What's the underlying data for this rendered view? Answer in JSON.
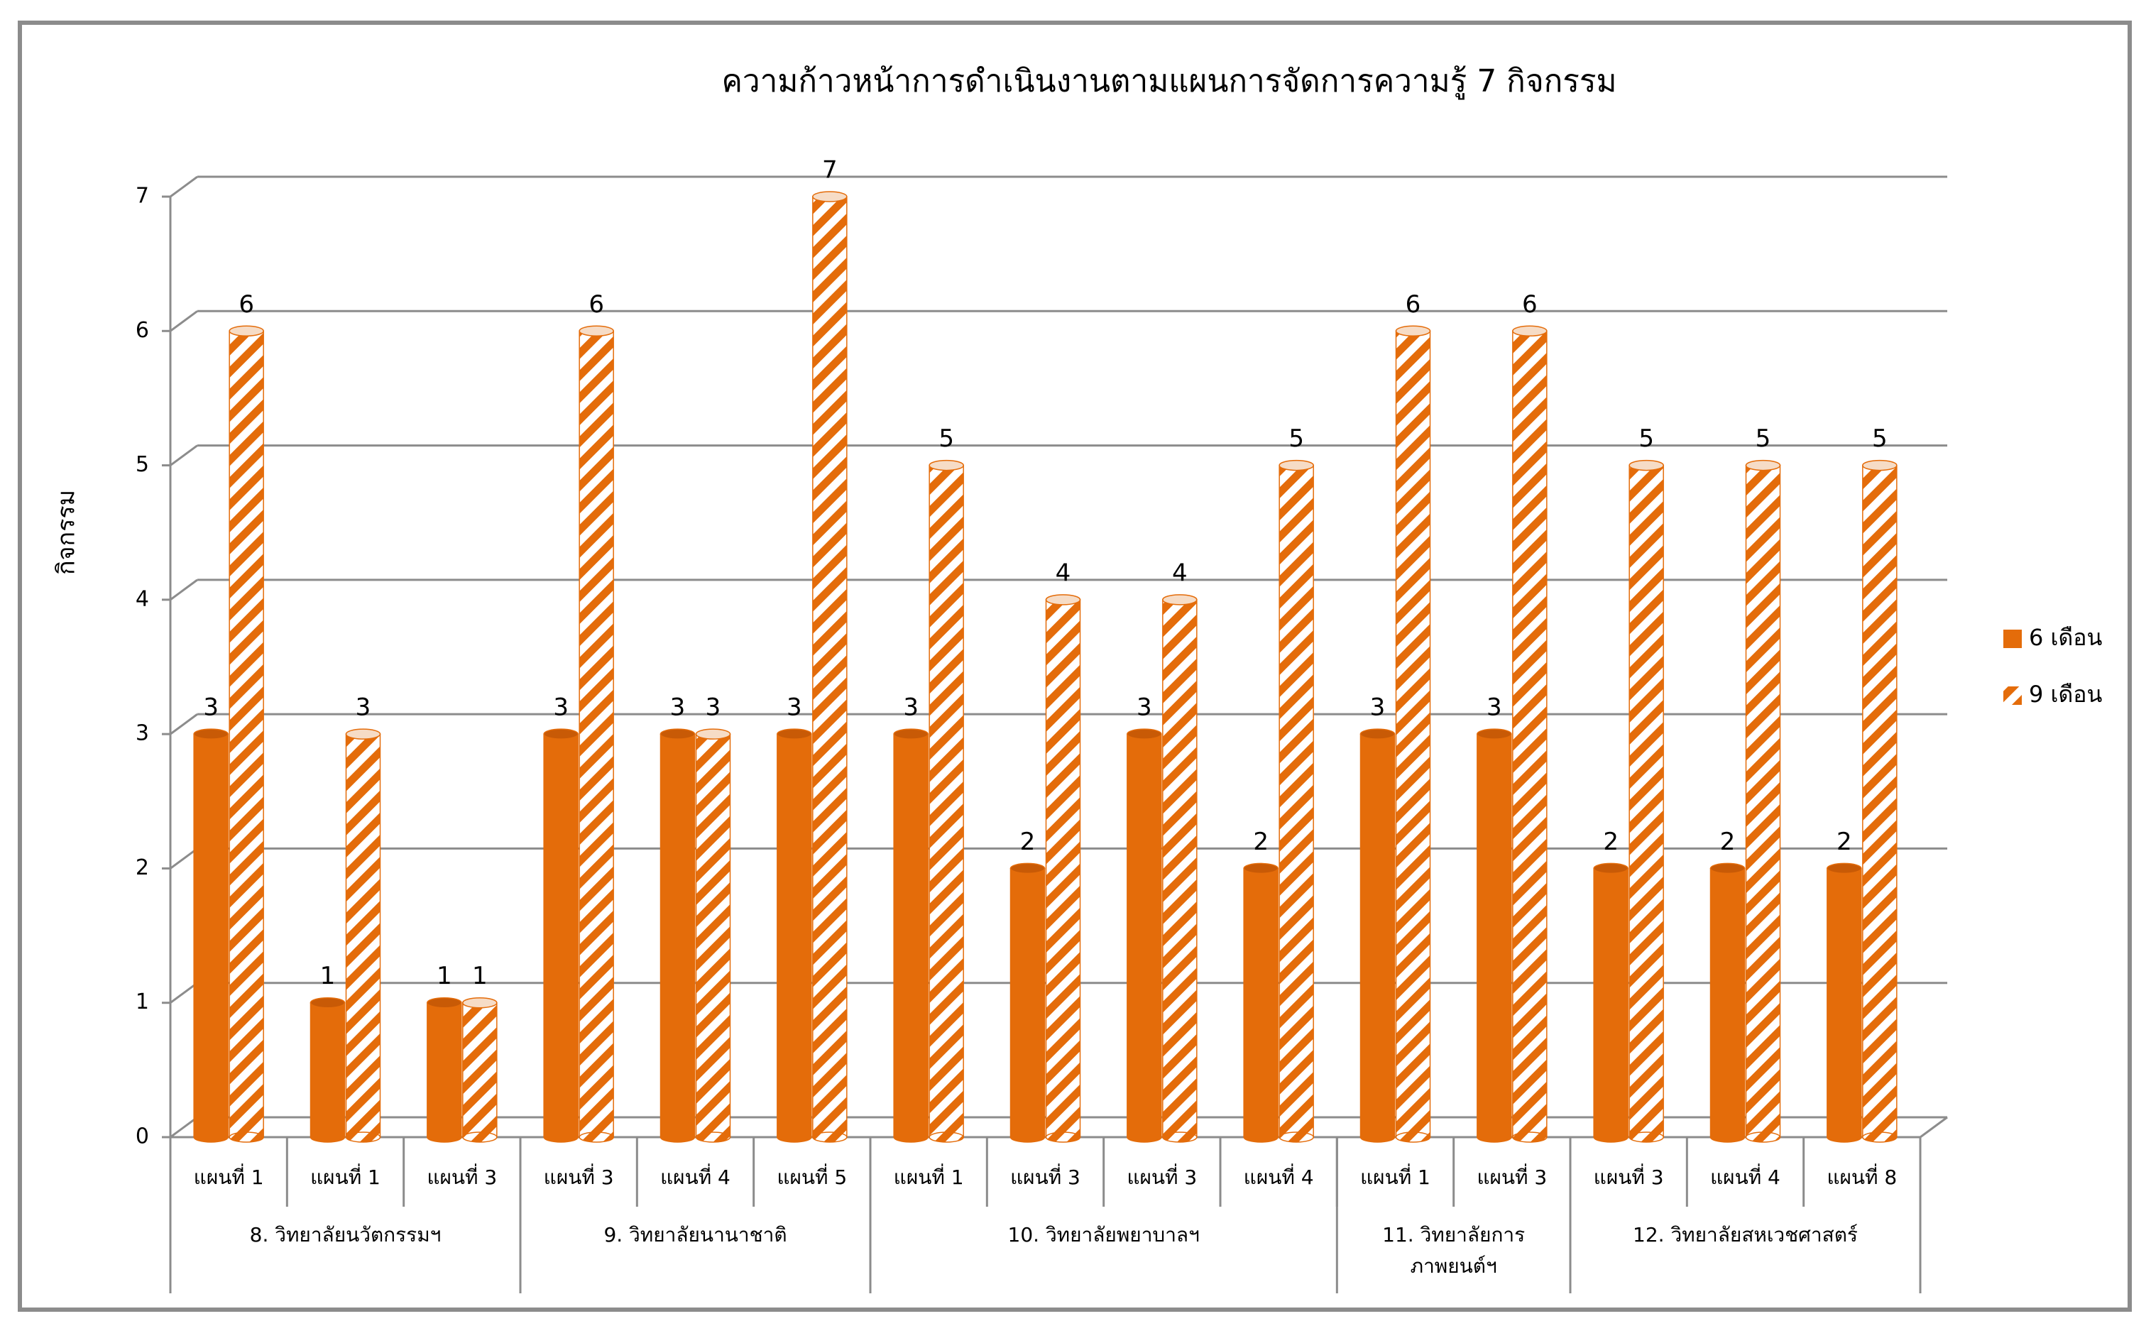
{
  "chart_data": {
    "type": "bar",
    "title": "ความก้าวหน้าการดำเนินงานตามแผนการจัดการความรู้ 7 กิจกรรม",
    "y_label": "กิจกรรม",
    "categories": [
      "แผนที่ 1",
      "แผนที่ 1",
      "แผนที่ 3",
      "แผนที่ 3",
      "แผนที่ 4",
      "แผนที่ 5",
      "แผนที่ 1",
      "แผนที่ 3",
      "แผนที่ 3",
      "แผนที่ 4",
      "แผนที่ 1",
      "แผนที่ 3",
      "แผนที่ 3",
      "แผนที่ 4",
      "แผนที่ 8"
    ],
    "groups": [
      {
        "name": "8. วิทยาลัยนวัตกรรมฯ",
        "span": 3
      },
      {
        "name": "9. วิทยาลัยนานาชาติ",
        "span": 3
      },
      {
        "name": "10. วิทยาลัยพยาบาลฯ",
        "span": 4
      },
      {
        "name": "11. วิทยาลัยการภาพยนต์ฯ",
        "span": 2
      },
      {
        "name": "12. วิทยาลัยสหเวชศาสตร์",
        "span": 3
      }
    ],
    "series": [
      {
        "name": "6 เดือน",
        "color": "#e46c0a",
        "pattern": "solid",
        "values": [
          3,
          1,
          1,
          3,
          3,
          3,
          3,
          2,
          3,
          2,
          3,
          3,
          2,
          2,
          2
        ]
      },
      {
        "name": "9 เดือน",
        "color": "#e46c0a",
        "pattern": "diagonal-stripes",
        "values": [
          6,
          3,
          1,
          6,
          3,
          7,
          5,
          4,
          4,
          5,
          6,
          6,
          5,
          5,
          5
        ]
      }
    ],
    "ylim": [
      0,
      7
    ],
    "yticks": [
      0,
      1,
      2,
      3,
      4,
      5,
      6,
      7
    ],
    "grid": true,
    "legend": "right"
  }
}
